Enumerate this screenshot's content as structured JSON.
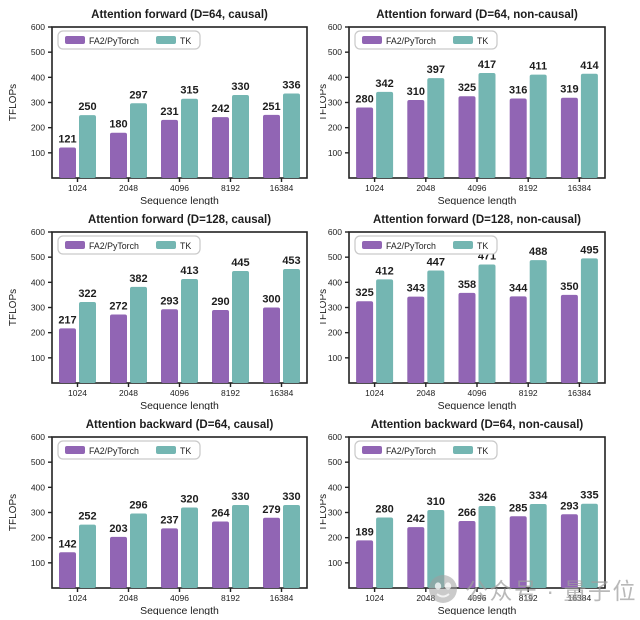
{
  "figure": {
    "watermark": {
      "text": "公众号 · 量子位",
      "icon": "qbitai-logo-icon",
      "color": "#9e9e9e"
    }
  },
  "colors": {
    "fa2": "#9165b4",
    "tk": "#74b6b2",
    "axis": "#222222",
    "value_label": "#161616",
    "legend_border": "#c9c9c9"
  },
  "chart_data": [
    {
      "type": "bar",
      "title": "Attention forward (D=64, causal)",
      "categories": [
        "1024",
        "2048",
        "4096",
        "8192",
        "16384"
      ],
      "xlabel": "Sequence length",
      "ylabel": "TFLOPs",
      "ylim": [
        0,
        600
      ],
      "yticks": [
        100,
        200,
        300,
        400,
        500,
        600
      ],
      "legend": [
        "FA2/PyTorch",
        "TK"
      ],
      "legend_position": "upper left",
      "grid": false,
      "series": [
        {
          "name": "FA2/PyTorch",
          "values": [
            121,
            180,
            231,
            242,
            251
          ]
        },
        {
          "name": "TK",
          "values": [
            250,
            297,
            315,
            330,
            336
          ]
        }
      ]
    },
    {
      "type": "bar",
      "title": "Attention forward (D=64, non-causal)",
      "categories": [
        "1024",
        "2048",
        "4096",
        "8192",
        "16384"
      ],
      "xlabel": "Sequence length",
      "ylabel": "TFLOPs",
      "ylim": [
        0,
        600
      ],
      "yticks": [
        100,
        200,
        300,
        400,
        500,
        600
      ],
      "legend": [
        "FA2/PyTorch",
        "TK"
      ],
      "legend_position": "upper left",
      "grid": false,
      "series": [
        {
          "name": "FA2/PyTorch",
          "values": [
            280,
            310,
            325,
            316,
            319
          ]
        },
        {
          "name": "TK",
          "values": [
            342,
            397,
            417,
            411,
            414
          ]
        }
      ]
    },
    {
      "type": "bar",
      "title": "Attention forward (D=128, causal)",
      "categories": [
        "1024",
        "2048",
        "4096",
        "8192",
        "16384"
      ],
      "xlabel": "Sequence length",
      "ylabel": "TFLOPs",
      "ylim": [
        0,
        600
      ],
      "yticks": [
        100,
        200,
        300,
        400,
        500,
        600
      ],
      "legend": [
        "FA2/PyTorch",
        "TK"
      ],
      "legend_position": "upper left",
      "grid": false,
      "series": [
        {
          "name": "FA2/PyTorch",
          "values": [
            217,
            272,
            293,
            290,
            300
          ]
        },
        {
          "name": "TK",
          "values": [
            322,
            382,
            413,
            445,
            453
          ]
        }
      ]
    },
    {
      "type": "bar",
      "title": "Attention forward (D=128, non-causal)",
      "categories": [
        "1024",
        "2048",
        "4096",
        "8192",
        "16384"
      ],
      "xlabel": "Sequence length",
      "ylabel": "TFLOPs",
      "ylim": [
        0,
        600
      ],
      "yticks": [
        100,
        200,
        300,
        400,
        500,
        600
      ],
      "legend": [
        "FA2/PyTorch",
        "TK"
      ],
      "legend_position": "upper left",
      "grid": false,
      "series": [
        {
          "name": "FA2/PyTorch",
          "values": [
            325,
            343,
            358,
            344,
            350
          ]
        },
        {
          "name": "TK",
          "values": [
            412,
            447,
            471,
            488,
            495
          ]
        }
      ]
    },
    {
      "type": "bar",
      "title": "Attention backward (D=64, causal)",
      "categories": [
        "1024",
        "2048",
        "4096",
        "8192",
        "16384"
      ],
      "xlabel": "Sequence length",
      "ylabel": "TFLOPs",
      "ylim": [
        0,
        600
      ],
      "yticks": [
        100,
        200,
        300,
        400,
        500,
        600
      ],
      "legend": [
        "FA2/PyTorch",
        "TK"
      ],
      "legend_position": "upper left",
      "grid": false,
      "series": [
        {
          "name": "FA2/PyTorch",
          "values": [
            142,
            203,
            237,
            264,
            279
          ]
        },
        {
          "name": "TK",
          "values": [
            252,
            296,
            320,
            330,
            330
          ]
        }
      ]
    },
    {
      "type": "bar",
      "title": "Attention backward (D=64, non-causal)",
      "categories": [
        "1024",
        "2048",
        "4096",
        "8192",
        "16384"
      ],
      "xlabel": "Sequence length",
      "ylabel": "TFLOPs",
      "ylim": [
        0,
        600
      ],
      "yticks": [
        100,
        200,
        300,
        400,
        500,
        600
      ],
      "legend": [
        "FA2/PyTorch",
        "TK"
      ],
      "legend_position": "upper left",
      "grid": false,
      "series": [
        {
          "name": "FA2/PyTorch",
          "values": [
            189,
            242,
            266,
            285,
            293
          ]
        },
        {
          "name": "TK",
          "values": [
            280,
            310,
            326,
            334,
            335
          ]
        }
      ]
    }
  ]
}
